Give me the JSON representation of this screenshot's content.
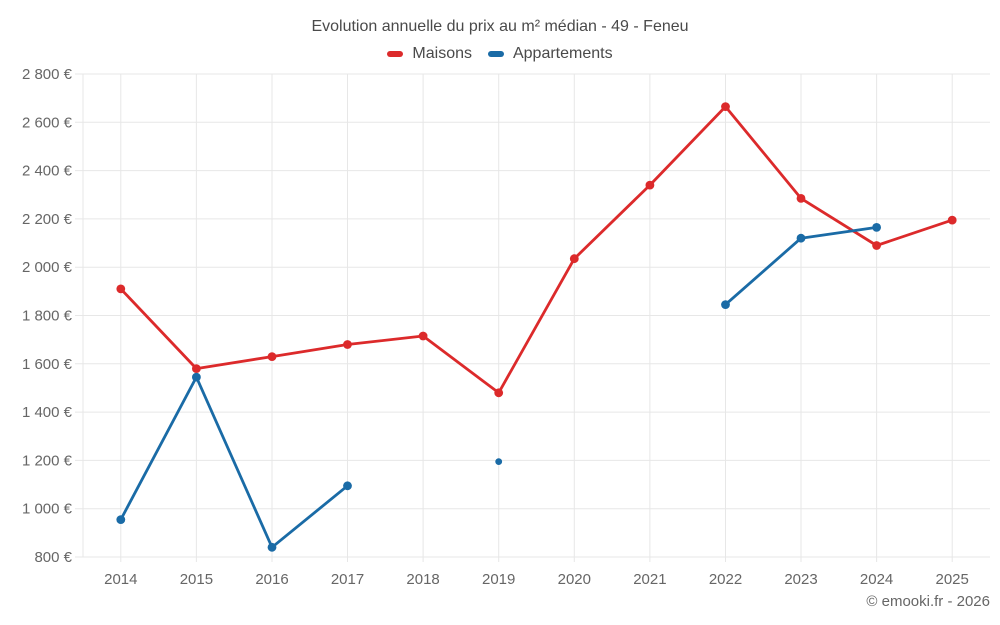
{
  "header": {
    "title": "Evolution annuelle du prix au m² médian - 49 - Feneu"
  },
  "legend": {
    "items": [
      {
        "label": "Maisons",
        "color": "#dc2a2b"
      },
      {
        "label": "Appartements",
        "color": "#1a6ba6"
      }
    ]
  },
  "footer": {
    "copyright": "© emooki.fr - 2026"
  },
  "colors": {
    "background": "#ffffff",
    "grid": "#e7e7e7",
    "axis_text": "#666666",
    "title_text": "#4a4a4a",
    "maisons": "#dc2a2b",
    "appartements": "#1a6ba6"
  },
  "chart_data": {
    "type": "line",
    "title": "Evolution annuelle du prix au m² médian - 49 - Feneu",
    "categories": [
      "2014",
      "2015",
      "2016",
      "2017",
      "2018",
      "2019",
      "2020",
      "2021",
      "2022",
      "2023",
      "2024",
      "2025"
    ],
    "xlabel": "",
    "ylabel": "",
    "ylim": [
      800,
      2800
    ],
    "grid": true,
    "legend_position": "top",
    "y_ticks": {
      "values": [
        800,
        1000,
        1200,
        1400,
        1600,
        1800,
        2000,
        2200,
        2400,
        2600,
        2800
      ],
      "labels": [
        "800 €",
        "1 000 €",
        "1 200 €",
        "1 400 €",
        "1 600 €",
        "1 800 €",
        "2 000 €",
        "2 200 €",
        "2 400 €",
        "2 600 €",
        "2 800 €"
      ]
    },
    "series": [
      {
        "name": "Maisons",
        "color": "#dc2a2b",
        "values": [
          1910,
          1580,
          1630,
          1680,
          1715,
          1480,
          2035,
          2340,
          2665,
          2285,
          2090,
          2195
        ]
      },
      {
        "name": "Appartements",
        "color": "#1a6ba6",
        "values": [
          955,
          1545,
          840,
          1095,
          null,
          1195,
          null,
          null,
          1845,
          2120,
          2165,
          null
        ]
      }
    ]
  }
}
